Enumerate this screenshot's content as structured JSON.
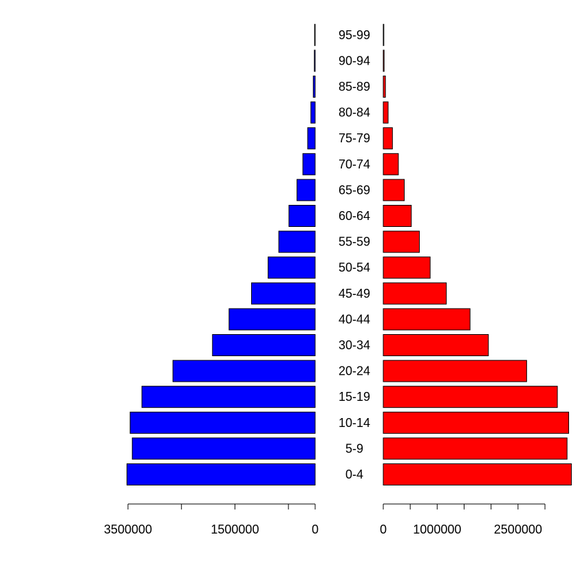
{
  "chart_data": {
    "type": "bar",
    "orientation": "horizontal",
    "layout": "population-pyramid",
    "categories": [
      "0-4",
      "5-9",
      "10-14",
      "15-19",
      "20-24",
      "30-34",
      "40-44",
      "45-49",
      "50-54",
      "55-59",
      "60-64",
      "65-69",
      "70-74",
      "75-79",
      "80-84",
      "85-89",
      "90-94",
      "95-99"
    ],
    "series": [
      {
        "side": "left",
        "color": "#0000ff",
        "values": [
          3520000,
          3420000,
          3460000,
          3240000,
          2660000,
          1920000,
          1610000,
          1190000,
          880000,
          680000,
          490000,
          340000,
          230000,
          140000,
          80000,
          35000,
          15000,
          5000
        ]
      },
      {
        "side": "right",
        "color": "#ff0000",
        "values": [
          3490000,
          3410000,
          3440000,
          3230000,
          2660000,
          1950000,
          1610000,
          1170000,
          870000,
          670000,
          520000,
          390000,
          280000,
          170000,
          90000,
          40000,
          15000,
          5000
        ]
      }
    ],
    "left_axis": {
      "range": [
        3500000,
        0
      ],
      "xlim": [
        0,
        3500000
      ],
      "tick_values": [
        3500000,
        2500000,
        1500000,
        500000,
        0
      ],
      "tick_labels": [
        "3500000",
        "",
        "1500000",
        "",
        "0"
      ]
    },
    "right_axis": {
      "range": [
        0,
        3000000
      ],
      "xlim": [
        0,
        3500000
      ],
      "tick_values": [
        0,
        500000,
        1000000,
        1500000,
        2000000,
        2500000,
        3000000
      ],
      "tick_labels": [
        "0",
        "",
        "1000000",
        "",
        "",
        "2500000",
        ""
      ]
    },
    "title": "",
    "xlabel": "",
    "ylabel": "",
    "grid": false,
    "legend": "none"
  }
}
